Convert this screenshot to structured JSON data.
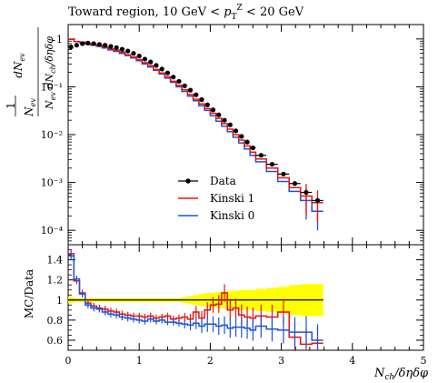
{
  "title_text": "Toward region, 10 GeV < p_T^Z < 20 GeV",
  "chart_data": [
    {
      "type": "line",
      "title": "Toward region, 10 GeV < p_T^Z < 20 GeV",
      "ylabel": "1/N_ev dN_ev/dN_ch/δηδφ",
      "xlabel": "N_ch/δηδφ",
      "x_scale": "linear",
      "y_scale": "log",
      "xlim": [
        0,
        5
      ],
      "ylim": [
        5e-05,
        2
      ],
      "x_ticks": [
        "0",
        "1",
        "2",
        "3",
        "4",
        "5"
      ],
      "y_ticks": [
        "10⁻⁴",
        "10⁻³",
        "10⁻²",
        "10⁻¹",
        "1"
      ],
      "legend_placement": "lower-left",
      "bin_edges": [
        0.0,
        0.08,
        0.16,
        0.24,
        0.32,
        0.4,
        0.48,
        0.56,
        0.64,
        0.72,
        0.8,
        0.88,
        0.96,
        1.04,
        1.12,
        1.2,
        1.28,
        1.36,
        1.44,
        1.52,
        1.6,
        1.68,
        1.76,
        1.84,
        1.92,
        2.0,
        2.08,
        2.16,
        2.24,
        2.32,
        2.4,
        2.48,
        2.56,
        2.64,
        2.79,
        2.95,
        3.11,
        3.27,
        3.43,
        3.59
      ],
      "series": [
        {
          "name": "Data",
          "color": "#000000",
          "style": "points",
          "values": [
            0.68,
            0.74,
            0.8,
            0.82,
            0.8,
            0.77,
            0.74,
            0.7,
            0.66,
            0.61,
            0.56,
            0.5,
            0.44,
            0.38,
            0.33,
            0.28,
            0.235,
            0.195,
            0.16,
            0.13,
            0.105,
            0.085,
            0.068,
            0.054,
            0.042,
            0.033,
            0.026,
            0.02,
            0.016,
            0.012,
            0.0092,
            0.007,
            0.0053,
            0.0037,
            0.0024,
            0.0015,
            0.00095,
            0.00062,
            0.00042
          ]
        },
        {
          "name": "Kinski 1",
          "color": "#ee1111",
          "style": "step",
          "values": [
            0.98,
            0.88,
            0.86,
            0.8,
            0.76,
            0.73,
            0.68,
            0.62,
            0.58,
            0.53,
            0.47,
            0.42,
            0.37,
            0.32,
            0.275,
            0.23,
            0.195,
            0.162,
            0.13,
            0.107,
            0.087,
            0.069,
            0.055,
            0.044,
            0.035,
            0.028,
            0.022,
            0.017,
            0.013,
            0.01,
            0.0077,
            0.0058,
            0.0043,
            0.0031,
            0.002,
            0.00125,
            0.00078,
            0.00052,
            0.00038
          ]
        },
        {
          "name": "Kinski 0",
          "color": "#1a55d8",
          "style": "step",
          "values": [
            0.98,
            0.88,
            0.84,
            0.78,
            0.74,
            0.7,
            0.65,
            0.59,
            0.55,
            0.5,
            0.45,
            0.4,
            0.35,
            0.3,
            0.26,
            0.22,
            0.185,
            0.152,
            0.124,
            0.1,
            0.08,
            0.064,
            0.051,
            0.04,
            0.032,
            0.025,
            0.019,
            0.015,
            0.0115,
            0.0088,
            0.0067,
            0.005,
            0.0037,
            0.0027,
            0.0017,
            0.00105,
            0.00065,
            0.00042,
            0.00025
          ]
        }
      ]
    },
    {
      "type": "line",
      "ylabel": "MC/Data",
      "xlabel": "N_ch/δηδφ",
      "xlim": [
        0,
        5
      ],
      "ylim": [
        0.5,
        1.55
      ],
      "x_ticks": [
        "0",
        "1",
        "2",
        "3",
        "4",
        "5"
      ],
      "y_ticks": [
        "0.6",
        "0.8",
        "1",
        "1.2",
        "1.4"
      ],
      "bin_edges": [
        0.0,
        0.08,
        0.16,
        0.24,
        0.32,
        0.4,
        0.48,
        0.56,
        0.64,
        0.72,
        0.8,
        0.88,
        0.96,
        1.04,
        1.12,
        1.2,
        1.28,
        1.36,
        1.44,
        1.52,
        1.6,
        1.68,
        1.76,
        1.84,
        1.92,
        2.0,
        2.08,
        2.16,
        2.24,
        2.32,
        2.4,
        2.48,
        2.56,
        2.64,
        2.79,
        2.95,
        3.11,
        3.27,
        3.43,
        3.59
      ],
      "band": {
        "color": "#ffff00",
        "half_width": [
          0.03,
          0.02,
          0.02,
          0.02,
          0.02,
          0.02,
          0.02,
          0.02,
          0.02,
          0.02,
          0.02,
          0.02,
          0.02,
          0.02,
          0.02,
          0.02,
          0.02,
          0.02,
          0.02,
          0.02,
          0.03,
          0.04,
          0.05,
          0.06,
          0.07,
          0.07,
          0.08,
          0.08,
          0.09,
          0.09,
          0.1,
          0.1,
          0.1,
          0.11,
          0.12,
          0.13,
          0.15,
          0.16,
          0.16
        ]
      },
      "reference_line": 1,
      "series": [
        {
          "name": "Kinski 1",
          "color": "#ee1111",
          "values": [
            1.46,
            1.19,
            1.07,
            0.97,
            0.94,
            0.92,
            0.91,
            0.89,
            0.88,
            0.86,
            0.85,
            0.84,
            0.84,
            0.83,
            0.84,
            0.82,
            0.83,
            0.84,
            0.81,
            0.82,
            0.83,
            0.81,
            0.88,
            0.82,
            0.9,
            0.95,
            0.96,
            1.07,
            0.9,
            0.92,
            0.85,
            0.83,
            0.82,
            0.84,
            0.83,
            0.88,
            0.63,
            0.56,
            0.57
          ]
        },
        {
          "name": "Kinski 0",
          "color": "#1a55d8",
          "values": [
            1.44,
            1.21,
            1.06,
            0.95,
            0.92,
            0.91,
            0.88,
            0.86,
            0.85,
            0.83,
            0.82,
            0.81,
            0.8,
            0.79,
            0.81,
            0.79,
            0.8,
            0.78,
            0.78,
            0.77,
            0.76,
            0.75,
            0.77,
            0.74,
            0.76,
            0.76,
            0.74,
            0.75,
            0.72,
            0.73,
            0.73,
            0.72,
            0.7,
            0.74,
            0.71,
            0.7,
            0.68,
            0.68,
            0.6
          ]
        }
      ]
    }
  ]
}
